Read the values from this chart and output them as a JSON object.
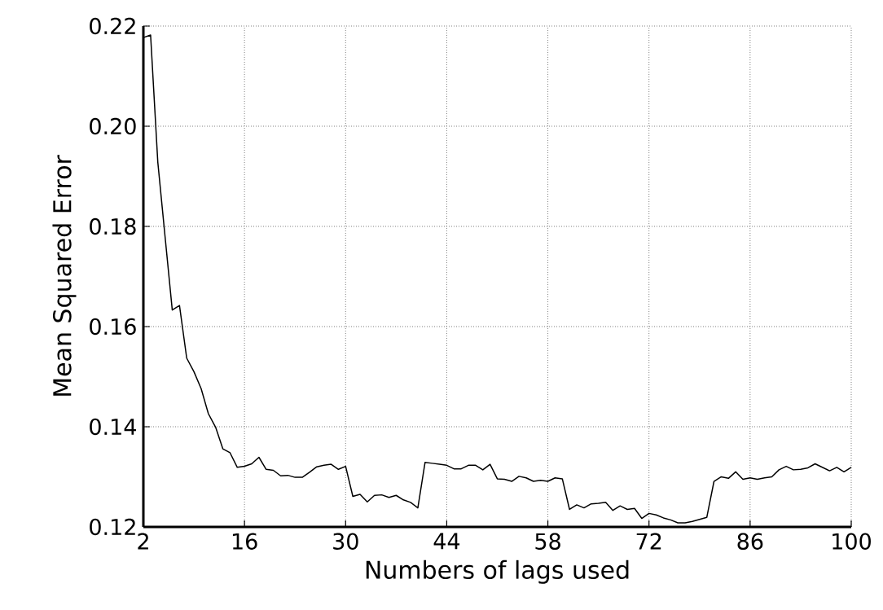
{
  "chart_data": {
    "type": "line",
    "xlabel": "Numbers of lags used",
    "ylabel": "Mean Squared Error",
    "x": [
      2,
      3,
      4,
      5,
      6,
      7,
      8,
      9,
      10,
      11,
      12,
      13,
      14,
      15,
      16,
      17,
      18,
      19,
      20,
      21,
      22,
      23,
      24,
      25,
      26,
      27,
      28,
      29,
      30,
      31,
      32,
      33,
      34,
      35,
      36,
      37,
      38,
      39,
      40,
      41,
      42,
      43,
      44,
      45,
      46,
      47,
      48,
      49,
      50,
      51,
      52,
      53,
      54,
      55,
      56,
      57,
      58,
      59,
      60,
      61,
      62,
      63,
      64,
      65,
      66,
      67,
      68,
      69,
      70,
      71,
      72,
      73,
      74,
      75,
      76,
      77,
      78,
      79,
      80,
      81,
      82,
      83,
      84,
      85,
      86,
      87,
      88,
      89,
      90,
      91,
      92,
      93,
      94,
      95,
      96,
      97,
      98,
      99,
      100
    ],
    "series": [
      {
        "color": "#000000",
        "values": [
          0.2177,
          0.2182,
          0.1928,
          0.178,
          0.1633,
          0.1642,
          0.1537,
          0.151,
          0.1476,
          0.1426,
          0.1399,
          0.1356,
          0.1348,
          0.1319,
          0.1321,
          0.1326,
          0.1339,
          0.1315,
          0.1313,
          0.1302,
          0.1303,
          0.1299,
          0.1299,
          0.1309,
          0.132,
          0.1323,
          0.1325,
          0.1315,
          0.1321,
          0.1261,
          0.1265,
          0.125,
          0.1263,
          0.1264,
          0.1259,
          0.1263,
          0.1254,
          0.1249,
          0.1238,
          0.1329,
          0.1327,
          0.1325,
          0.1323,
          0.1316,
          0.1316,
          0.1323,
          0.1323,
          0.1314,
          0.1325,
          0.1296,
          0.1295,
          0.1291,
          0.1301,
          0.1298,
          0.1291,
          0.1293,
          0.1291,
          0.1298,
          0.1296,
          0.1235,
          0.1244,
          0.1238,
          0.1246,
          0.1247,
          0.1249,
          0.1233,
          0.1242,
          0.1235,
          0.1237,
          0.1217,
          0.1227,
          0.1224,
          0.1218,
          0.1214,
          0.1208,
          0.1208,
          0.1211,
          0.1215,
          0.1219,
          0.1291,
          0.13,
          0.1297,
          0.131,
          0.1295,
          0.1298,
          0.1295,
          0.1298,
          0.13,
          0.1314,
          0.1321,
          0.1314,
          0.1315,
          0.1318,
          0.1326,
          0.1319,
          0.1312,
          0.1319,
          0.131,
          0.1319
        ]
      }
    ],
    "xlim": [
      2,
      100
    ],
    "ylim": [
      0.12,
      0.22
    ],
    "xticks": [
      2,
      16,
      30,
      44,
      58,
      72,
      86,
      100
    ],
    "yticks": [
      0.12,
      0.14,
      0.16,
      0.18,
      {
        "value": 0.2,
        "label": "0.20"
      },
      0.22
    ],
    "grid": true,
    "marker": "none",
    "line_style": "solid"
  }
}
